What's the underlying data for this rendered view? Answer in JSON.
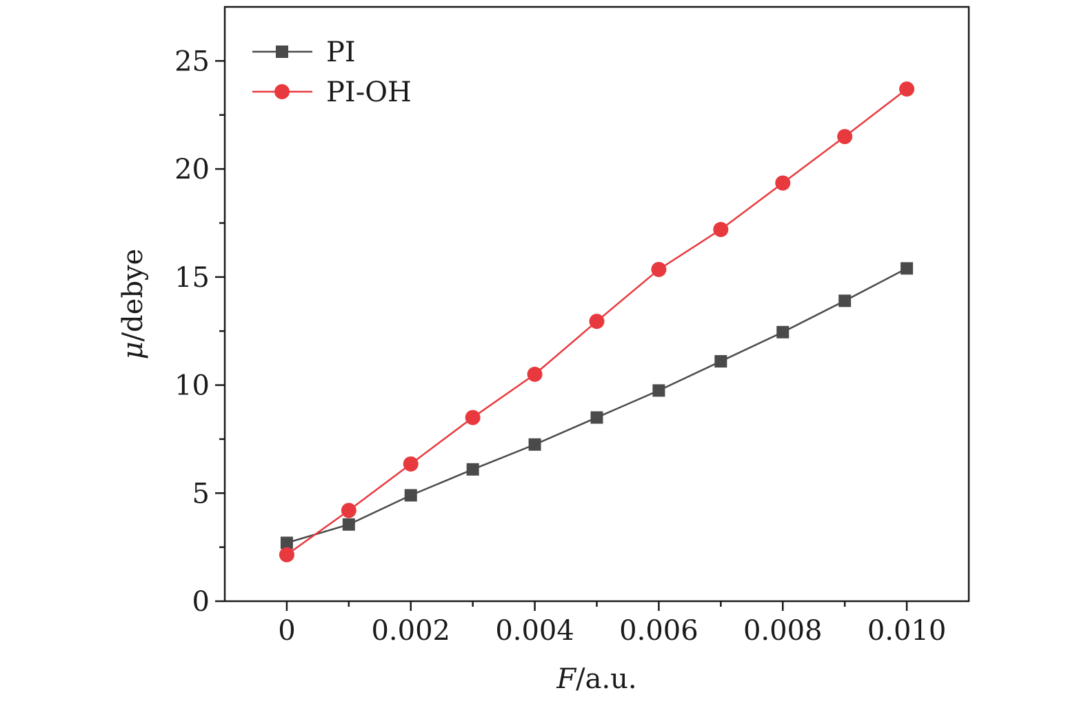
{
  "chart_data": {
    "type": "line",
    "title": "",
    "xlabel": "F/a.u.",
    "xlabel_italic": "F",
    "xlabel_rest": "/a.u.",
    "ylabel": "μ/debye",
    "ylabel_italic": "μ",
    "ylabel_rest": "/debye",
    "xlim": [
      -0.001,
      0.011
    ],
    "ylim": [
      0,
      27.5
    ],
    "xticks": [
      0,
      0.002,
      0.004,
      0.006,
      0.008,
      0.01
    ],
    "xtick_labels": [
      "0",
      "0.002",
      "0.004",
      "0.006",
      "0.008",
      "0.010"
    ],
    "xminor": [
      0.001,
      0.003,
      0.005,
      0.007,
      0.009
    ],
    "yticks": [
      0,
      5,
      10,
      15,
      20,
      25
    ],
    "ytick_labels": [
      "0",
      "5",
      "10",
      "15",
      "20",
      "25"
    ],
    "yminor": [
      2.5,
      7.5,
      12.5,
      17.5,
      22.5
    ],
    "grid": false,
    "legend_position": "top-left",
    "x": [
      0,
      0.001,
      0.002,
      0.003,
      0.004,
      0.005,
      0.006,
      0.007,
      0.008,
      0.009,
      0.01
    ],
    "series": [
      {
        "name": "PI",
        "marker": "square",
        "color": "#4a4a4a",
        "values": [
          2.7,
          3.55,
          4.9,
          6.1,
          7.25,
          8.5,
          9.75,
          11.1,
          12.45,
          13.9,
          15.4
        ]
      },
      {
        "name": "PI-OH",
        "marker": "circle",
        "color": "#e8393e",
        "values": [
          2.15,
          4.2,
          6.35,
          8.5,
          10.5,
          12.95,
          15.35,
          17.2,
          19.35,
          21.5,
          23.7
        ]
      }
    ]
  }
}
